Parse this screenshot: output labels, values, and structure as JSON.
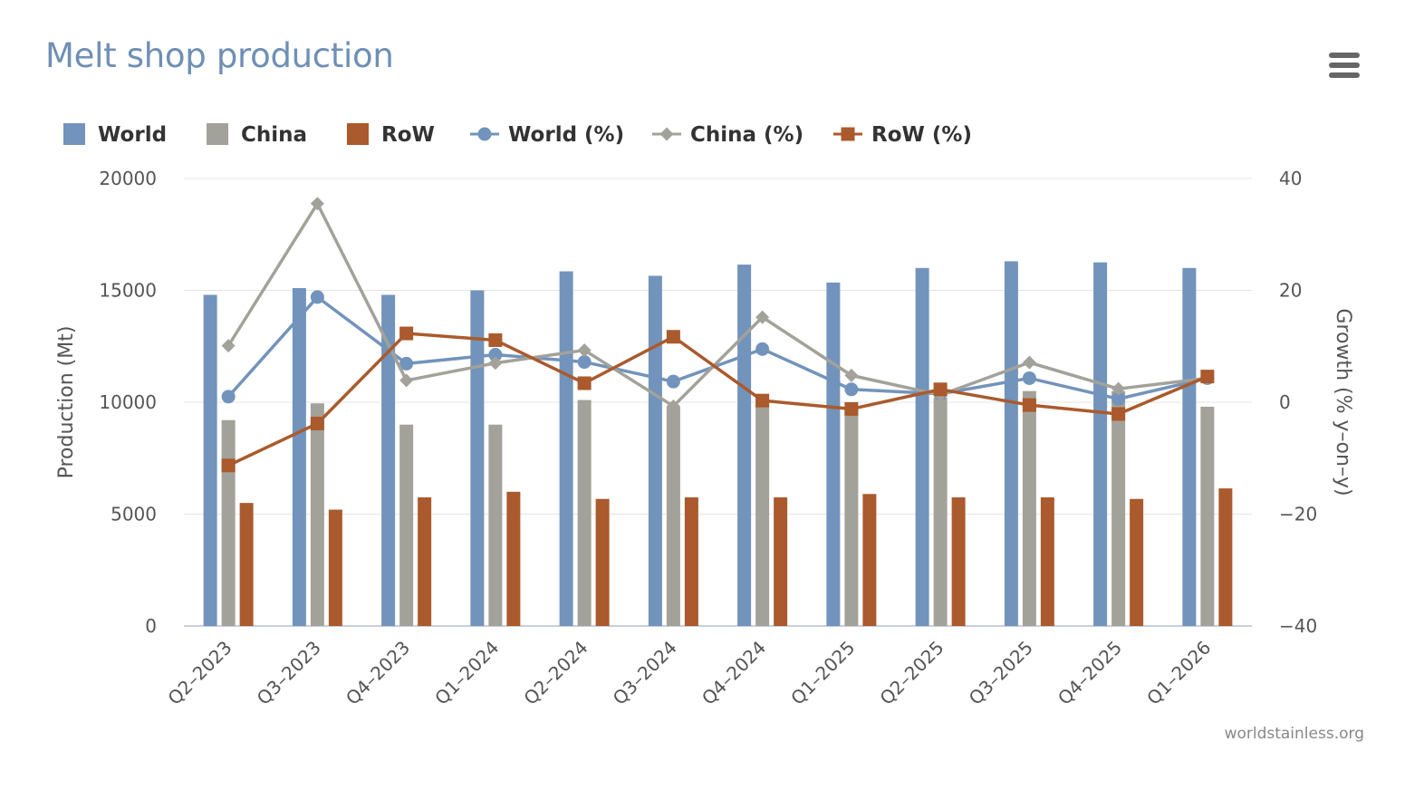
{
  "title": "Melt shop production",
  "credit": "worldstainless.org",
  "menu_icon": "hamburger-menu-icon",
  "colors": {
    "world": "#7293bb",
    "china": "#a2a29a",
    "row": "#aa5a2c",
    "grid": "#e4e4e4",
    "title": "#6f8fb5"
  },
  "chart_data": {
    "type": "bar",
    "categories": [
      "Q2-2023",
      "Q3-2023",
      "Q4-2023",
      "Q1-2024",
      "Q2-2024",
      "Q3-2024",
      "Q4-2024",
      "Q1-2025",
      "Q2-2025",
      "Q3-2025",
      "Q4-2025",
      "Q1-2026"
    ],
    "y_left": {
      "label": "Production (Mt)",
      "min": 0,
      "max": 20000,
      "ticks": [
        0,
        5000,
        10000,
        15000,
        20000
      ]
    },
    "y_right": {
      "label": "Growth (% y-on-y)",
      "min": -40,
      "max": 40,
      "ticks": [
        -40,
        -20,
        0,
        20,
        40
      ]
    },
    "legend_position": "top",
    "grid": true,
    "series": [
      {
        "name": "World",
        "type": "bar",
        "axis": "left",
        "color": "#7293bb",
        "values": [
          14800,
          15100,
          14800,
          15000,
          15850,
          15650,
          16150,
          15350,
          16000,
          16300,
          16250,
          16000
        ]
      },
      {
        "name": "China",
        "type": "bar",
        "axis": "left",
        "color": "#a2a29a",
        "values": [
          9200,
          9950,
          9000,
          9000,
          10100,
          9800,
          10200,
          9700,
          10200,
          10500,
          10500,
          9800
        ]
      },
      {
        "name": "RoW",
        "type": "bar",
        "axis": "left",
        "color": "#aa5a2c",
        "values": [
          5500,
          5200,
          5750,
          6000,
          5680,
          5750,
          5750,
          5900,
          5750,
          5750,
          5680,
          6150
        ]
      },
      {
        "name": "World (%)",
        "type": "line",
        "marker": "circle",
        "axis": "right",
        "color": "#7293bb",
        "values": [
          1.0,
          18.8,
          6.9,
          8.5,
          7.2,
          3.7,
          9.5,
          2.3,
          1.5,
          4.3,
          0.6,
          4.3
        ]
      },
      {
        "name": "China (%)",
        "type": "line",
        "marker": "diamond",
        "axis": "right",
        "color": "#a2a29a",
        "values": [
          10.1,
          35.5,
          3.9,
          7.0,
          9.3,
          -0.7,
          15.2,
          4.8,
          1.3,
          7.1,
          2.4,
          4.3
        ]
      },
      {
        "name": "RoW (%)",
        "type": "line",
        "marker": "square",
        "axis": "right",
        "color": "#aa5a2c",
        "values": [
          -11.3,
          -3.8,
          12.3,
          11.1,
          3.4,
          11.7,
          0.3,
          -1.2,
          2.3,
          -0.5,
          -2.1,
          4.6
        ]
      }
    ]
  }
}
